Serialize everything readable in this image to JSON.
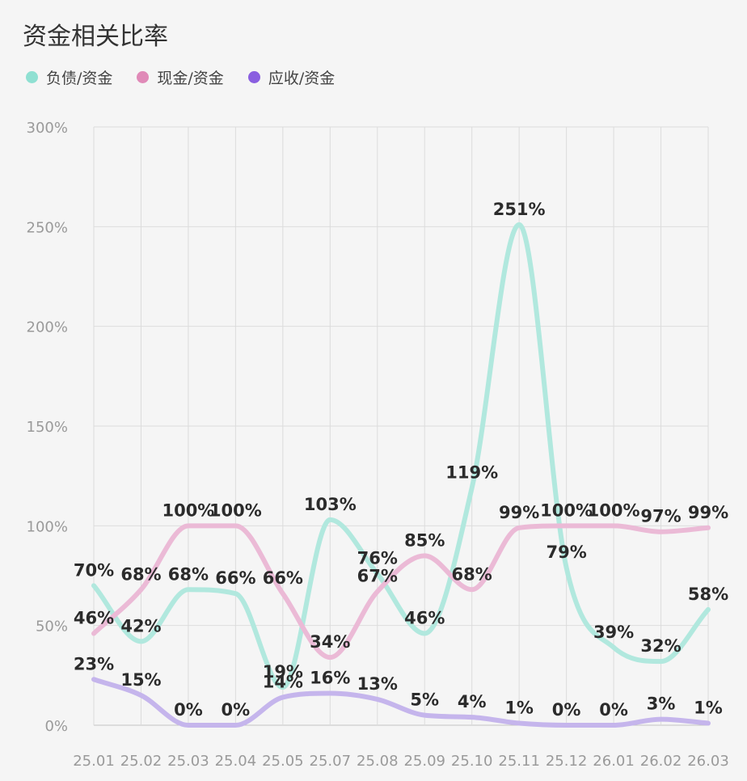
{
  "chart_data": {
    "type": "line",
    "title": "资金相关比率",
    "categories": [
      "25.01",
      "25.02",
      "25.03",
      "25.04",
      "25.05",
      "25.07",
      "25.08",
      "25.09",
      "25.10",
      "25.11",
      "25.12",
      "26.01",
      "26.02",
      "26.03"
    ],
    "ylim": [
      0,
      300
    ],
    "yticks": [
      "0%",
      "50%",
      "100%",
      "150%",
      "200%",
      "250%",
      "300%"
    ],
    "grid": true,
    "legend_position": "top-left",
    "series": [
      {
        "name": "负债/资金",
        "color": "#b1e8de",
        "values": [
          70,
          42,
          68,
          66,
          19,
          103,
          76,
          46,
          119,
          251,
          79,
          39,
          32,
          58
        ],
        "labels": [
          "70%",
          "42%",
          "68%",
          "66%",
          "19%",
          "103%",
          "76%",
          "46%",
          "119%",
          "251%",
          "79%",
          "39%",
          "32%",
          "58%"
        ]
      },
      {
        "name": "现金/资金",
        "color": "#ebbad6",
        "values": [
          46,
          68,
          100,
          100,
          66,
          34,
          67,
          85,
          68,
          99,
          100,
          100,
          97,
          99
        ],
        "labels": [
          "46%",
          "68%",
          "100%",
          "100%",
          "66%",
          "34%",
          "67%",
          "85%",
          "68%",
          "99%",
          "100%",
          "100%",
          "97%",
          "99%"
        ]
      },
      {
        "name": "应收/资金",
        "color": "#c5b5ec",
        "values": [
          23,
          15,
          0,
          0,
          14,
          16,
          13,
          5,
          4,
          1,
          0,
          0,
          3,
          1
        ],
        "labels": [
          "23%",
          "15%",
          "0%",
          "0%",
          "14%",
          "16%",
          "13%",
          "5%",
          "4%",
          "1%",
          "0%",
          "0%",
          "3%",
          "1%"
        ]
      }
    ]
  },
  "legend_colors": [
    "#8fe0d2",
    "#e08ab8",
    "#8a5fe0"
  ]
}
